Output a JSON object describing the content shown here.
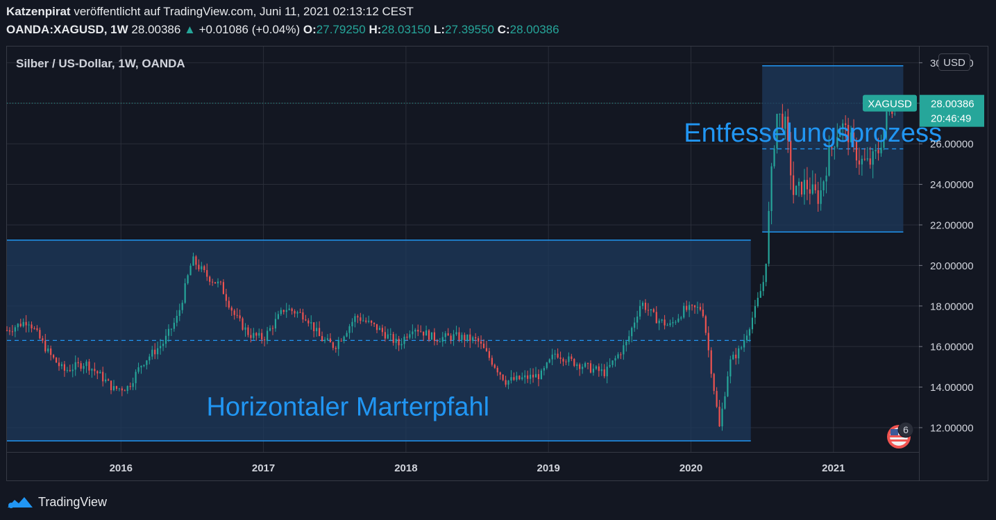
{
  "header": {
    "author": "Katzenpirat",
    "published_text": "veröffentlicht auf TradingView.com, Juni 11, 2021 02:13:12 CEST",
    "symbol": "OANDA:XAGUSD, 1W",
    "last": "28.00386",
    "change": "+0.01086 (+0.04%)",
    "o_label": "O:",
    "o_value": "27.79250",
    "h_label": "H:",
    "h_value": "28.03150",
    "l_label": "L:",
    "l_value": "27.39550",
    "c_label": "C:",
    "c_value": "28.00386"
  },
  "footer": {
    "brand": "TradingView"
  },
  "colors": {
    "background": "#131722",
    "up": "#26a69a",
    "down": "#ef5350",
    "box_fill": "#1d3a5c",
    "box_line": "#2196f3",
    "grid": "#2a2e39",
    "text": "#d1d4dc"
  },
  "chart_data": {
    "type": "candlestick",
    "title": "Silber / US-Dollar, 1W, OANDA",
    "currency_label": "USD",
    "ylim": [
      10.8,
      30.8
    ],
    "yticks": [
      "12.00000",
      "14.00000",
      "16.00000",
      "18.00000",
      "20.00000",
      "22.00000",
      "24.00000",
      "26.00000",
      "28.00000",
      "30.00000"
    ],
    "xlim": [
      2015.2,
      2021.6
    ],
    "xticks": [
      "2016",
      "2017",
      "2018",
      "2019",
      "2020",
      "2021"
    ],
    "last_price_label": "28.00386",
    "symbol_tag": "XAGUSD",
    "countdown": "20:46:49",
    "events_badge": "6",
    "annotations": [
      {
        "text": "Horizontaler Marterpfahl",
        "x": 2016.6,
        "y": 12.6
      },
      {
        "text": "Entfesselungsprozess",
        "x": 2019.95,
        "y": 26.1
      }
    ],
    "boxes": [
      {
        "name": "Horizontaler Marterpfahl",
        "x_start": 2015.2,
        "x_end": 2020.42,
        "y_low": 11.35,
        "y_high": 21.25,
        "mid": 16.3
      },
      {
        "name": "Entfesselungsprozess",
        "x_start": 2020.5,
        "x_end": 2021.49,
        "y_low": 21.65,
        "y_high": 29.85,
        "mid": 25.75
      }
    ],
    "price_path": [
      {
        "x": 2015.2,
        "y": 16.8
      },
      {
        "x": 2015.35,
        "y": 17.3
      },
      {
        "x": 2015.5,
        "y": 15.6
      },
      {
        "x": 2015.6,
        "y": 14.8
      },
      {
        "x": 2015.75,
        "y": 15.2
      },
      {
        "x": 2015.85,
        "y": 14.6
      },
      {
        "x": 2015.95,
        "y": 13.9
      },
      {
        "x": 2016.05,
        "y": 14.0
      },
      {
        "x": 2016.15,
        "y": 15.2
      },
      {
        "x": 2016.3,
        "y": 16.2
      },
      {
        "x": 2016.4,
        "y": 17.5
      },
      {
        "x": 2016.5,
        "y": 20.3
      },
      {
        "x": 2016.6,
        "y": 19.5
      },
      {
        "x": 2016.7,
        "y": 19.0
      },
      {
        "x": 2016.8,
        "y": 17.5
      },
      {
        "x": 2016.9,
        "y": 16.6
      },
      {
        "x": 2017.0,
        "y": 16.4
      },
      {
        "x": 2017.15,
        "y": 17.9
      },
      {
        "x": 2017.3,
        "y": 17.5
      },
      {
        "x": 2017.4,
        "y": 16.4
      },
      {
        "x": 2017.5,
        "y": 16.0
      },
      {
        "x": 2017.65,
        "y": 17.5
      },
      {
        "x": 2017.8,
        "y": 16.9
      },
      {
        "x": 2017.95,
        "y": 16.1
      },
      {
        "x": 2018.05,
        "y": 17.0
      },
      {
        "x": 2018.2,
        "y": 16.4
      },
      {
        "x": 2018.35,
        "y": 16.5
      },
      {
        "x": 2018.5,
        "y": 16.3
      },
      {
        "x": 2018.6,
        "y": 15.3
      },
      {
        "x": 2018.7,
        "y": 14.3
      },
      {
        "x": 2018.8,
        "y": 14.4
      },
      {
        "x": 2018.95,
        "y": 14.6
      },
      {
        "x": 2019.05,
        "y": 15.7
      },
      {
        "x": 2019.15,
        "y": 15.3
      },
      {
        "x": 2019.3,
        "y": 14.9
      },
      {
        "x": 2019.4,
        "y": 14.7
      },
      {
        "x": 2019.55,
        "y": 16.2
      },
      {
        "x": 2019.65,
        "y": 18.2
      },
      {
        "x": 2019.75,
        "y": 17.4
      },
      {
        "x": 2019.85,
        "y": 17.0
      },
      {
        "x": 2019.95,
        "y": 17.8
      },
      {
        "x": 2020.08,
        "y": 17.9
      },
      {
        "x": 2020.15,
        "y": 14.5
      },
      {
        "x": 2020.2,
        "y": 12.0
      },
      {
        "x": 2020.27,
        "y": 15.2
      },
      {
        "x": 2020.35,
        "y": 15.9
      },
      {
        "x": 2020.45,
        "y": 17.8
      },
      {
        "x": 2020.52,
        "y": 19.5
      },
      {
        "x": 2020.56,
        "y": 24.0
      },
      {
        "x": 2020.6,
        "y": 27.5
      },
      {
        "x": 2020.66,
        "y": 27.0
      },
      {
        "x": 2020.72,
        "y": 23.5
      },
      {
        "x": 2020.8,
        "y": 24.0
      },
      {
        "x": 2020.9,
        "y": 23.3
      },
      {
        "x": 2020.97,
        "y": 25.5
      },
      {
        "x": 2021.05,
        "y": 27.0
      },
      {
        "x": 2021.1,
        "y": 26.5
      },
      {
        "x": 2021.18,
        "y": 25.2
      },
      {
        "x": 2021.25,
        "y": 25.0
      },
      {
        "x": 2021.32,
        "y": 25.7
      },
      {
        "x": 2021.38,
        "y": 27.5
      },
      {
        "x": 2021.44,
        "y": 28.0
      }
    ]
  }
}
